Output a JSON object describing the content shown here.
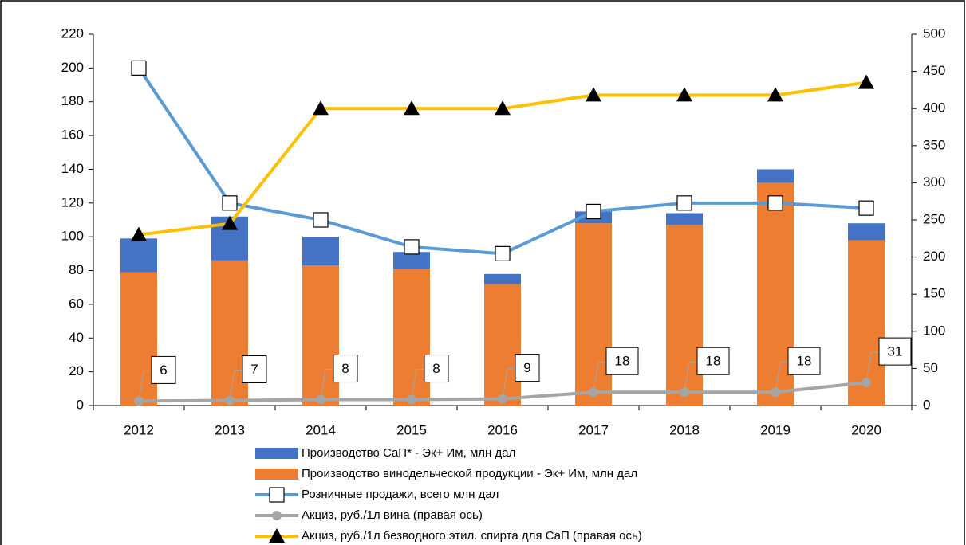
{
  "chart_data": {
    "type": "bar",
    "categories": [
      "2012",
      "2013",
      "2014",
      "2015",
      "2016",
      "2017",
      "2018",
      "2019",
      "2020"
    ],
    "series": [
      {
        "name": "Производство СаП* - Эк+ Им, млн дал",
        "type": "bar",
        "color": "#4472c4",
        "values": [
          20,
          26,
          17,
          10,
          6,
          7,
          7,
          8,
          10
        ]
      },
      {
        "name": "Производство винодельческой продукции - Эк+ Им, млн дал",
        "type": "bar",
        "color": "#ed7d31",
        "values": [
          79,
          86,
          83,
          81,
          72,
          108,
          107,
          132,
          98
        ]
      },
      {
        "name": "Розничные продажи, всего млн дал",
        "type": "line",
        "marker": "square",
        "color": "#5b9bd5",
        "values": [
          200,
          120,
          110,
          94,
          90,
          115,
          120,
          120,
          117
        ]
      },
      {
        "name": "Акциз, руб./1л вина (правая ось)",
        "type": "line",
        "marker": "circle",
        "axis": "y2",
        "color": "#a5a5a5",
        "values": [
          6,
          7,
          8,
          8,
          9,
          18,
          18,
          18,
          31
        ]
      },
      {
        "name": "Акциз, руб./1л безводного этил. спирта для СаП (правая ось)",
        "type": "line",
        "marker": "triangle",
        "axis": "y2",
        "color": "#ffc000",
        "values": [
          230,
          245,
          400,
          400,
          400,
          418,
          418,
          418,
          435
        ]
      }
    ],
    "data_labels_series": 3,
    "ylim": [
      0,
      220
    ],
    "yticks": [
      0,
      20,
      40,
      60,
      80,
      100,
      120,
      140,
      160,
      180,
      200,
      220
    ],
    "y2lim": [
      0,
      500
    ],
    "y2ticks": [
      0,
      50,
      100,
      150,
      200,
      250,
      300,
      350,
      400,
      450,
      500
    ],
    "legend": "bottom"
  }
}
